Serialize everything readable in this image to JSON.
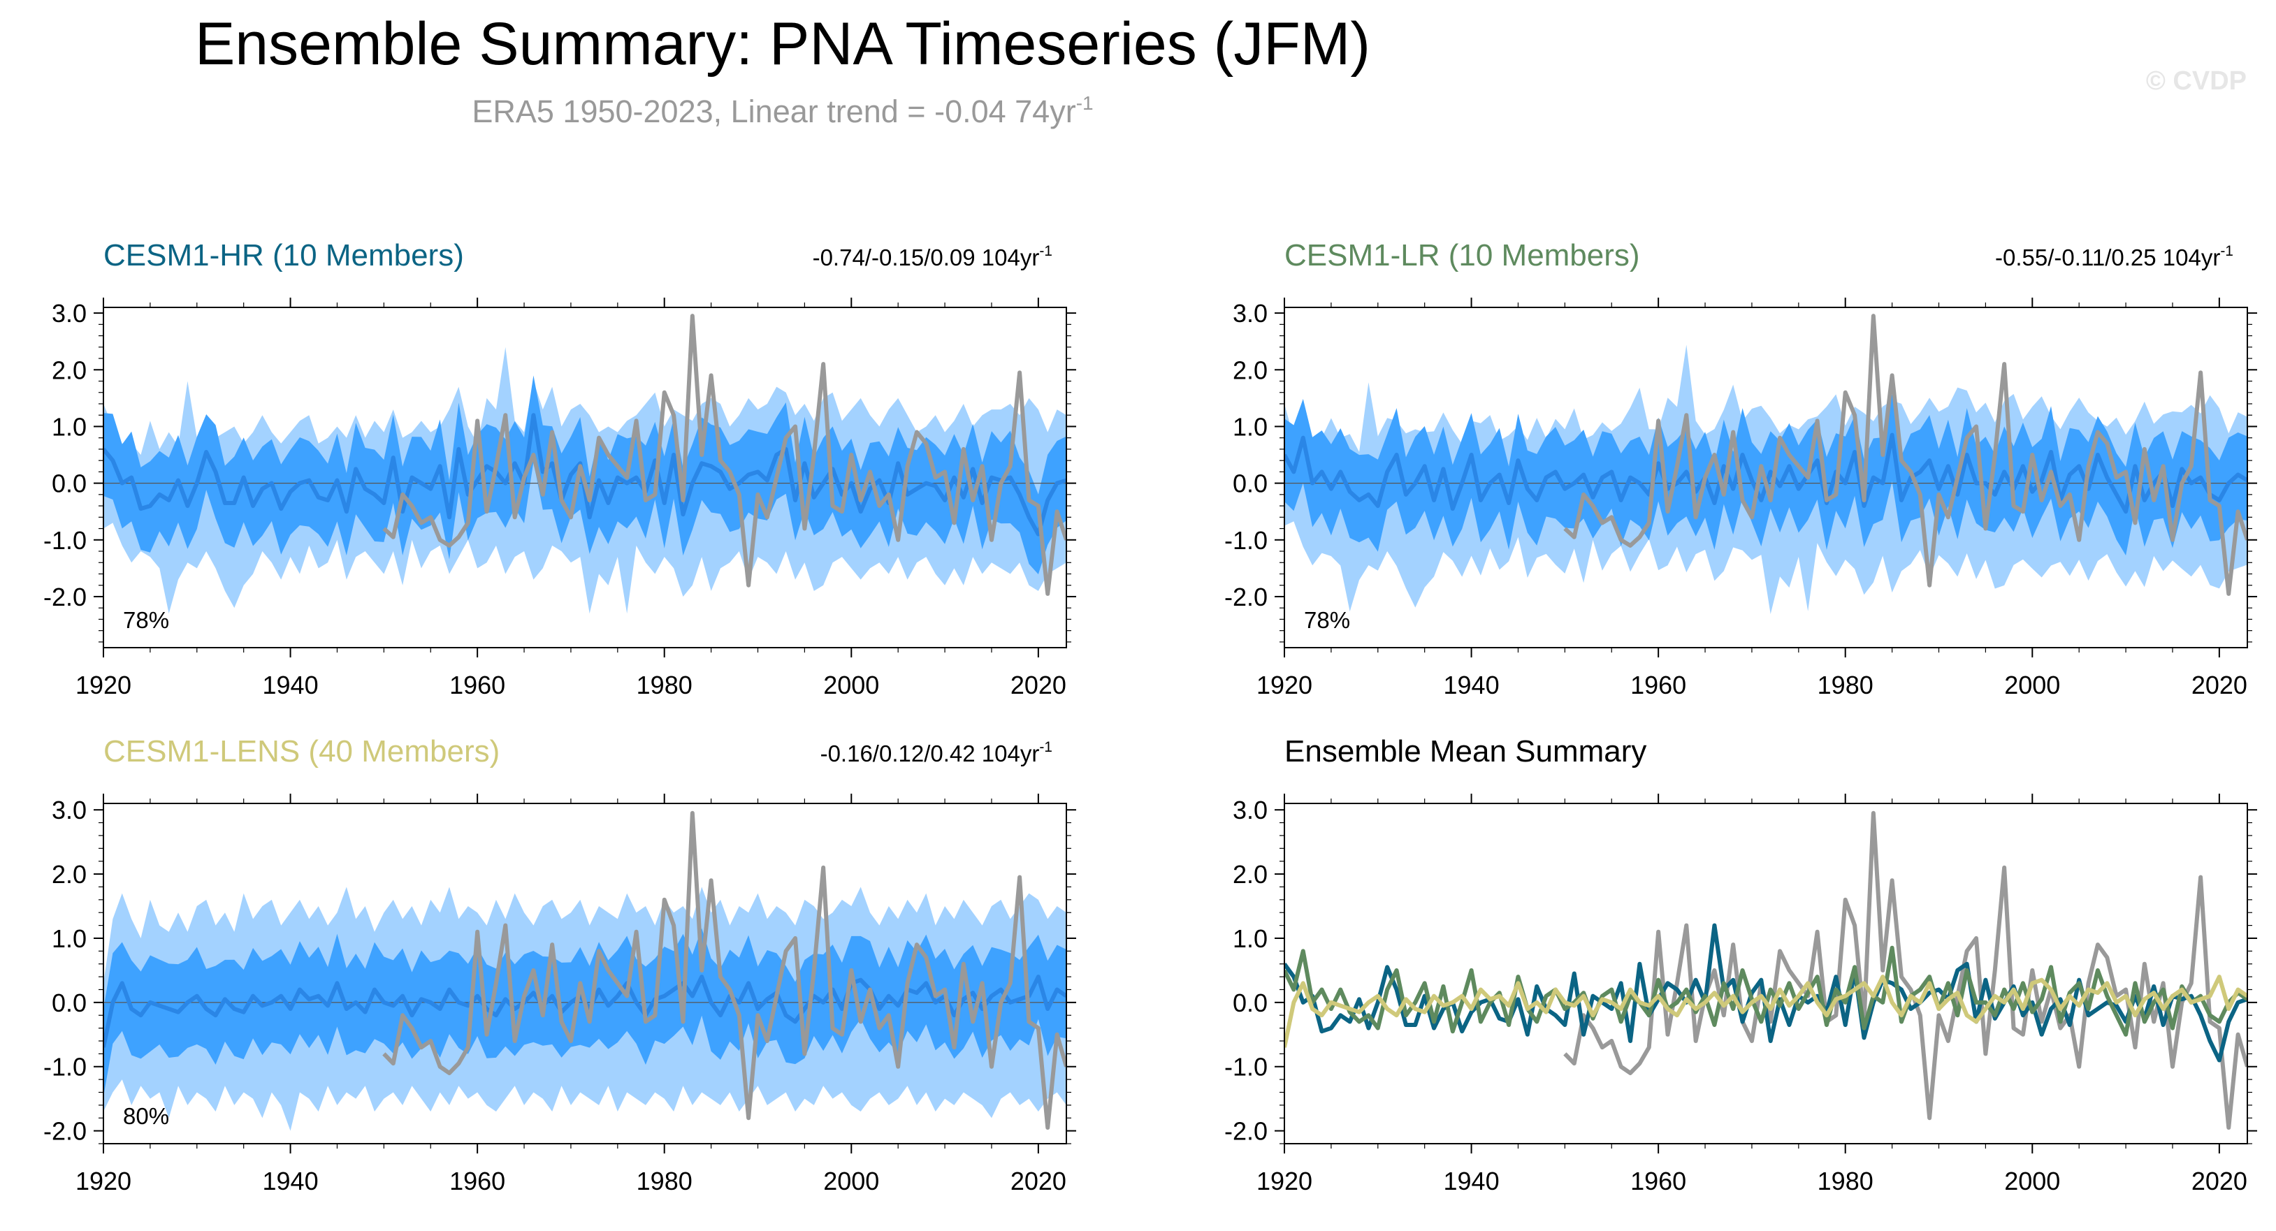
{
  "header": {
    "title": "Ensemble Summary: PNA Timeseries (JFM)",
    "subtitle": "ERA5 1950-2023, Linear trend = -0.04 74yr",
    "subtitle_sup": "-1",
    "watermark": "© CVDP"
  },
  "colors": {
    "obs": "#999999",
    "band_outer": "#a3d2ff",
    "band_inner": "#3ea2ff",
    "ens_mean": "#2a86e6",
    "hr": "#0b6484",
    "lr": "#5e8a5e",
    "lens": "#cfc97a"
  },
  "chart_data": [
    {
      "type": "line",
      "id": "hr",
      "title": "CESM1-HR (10 Members)",
      "title_color": "#0b6484",
      "trend_label": "-0.74/-0.15/0.09 104yr",
      "trend_sup": "-1",
      "pct_label": "78%",
      "xlabel": "",
      "ylabel": "",
      "xlim": [
        1920,
        2023
      ],
      "ylim": [
        -2.9,
        3.1
      ],
      "yticks": [
        3.0,
        2.0,
        1.0,
        0.0,
        -1.0,
        -2.0
      ],
      "ytick_labels": [
        "3.0",
        "2.0",
        "1.0",
        "0.0",
        "-1.0",
        "-2.0"
      ],
      "xticks": [
        1920,
        1940,
        1960,
        1980,
        2000,
        2020
      ],
      "xtick_labels": [
        "1920",
        "1940",
        "1960",
        "1980",
        "2000",
        "2020"
      ],
      "series": [
        {
          "name": "Ensemble spread (full range)",
          "style": "band_outer"
        },
        {
          "name": "Ensemble spread (inner range)",
          "style": "band_inner"
        },
        {
          "name": "CESM1-HR ensemble mean",
          "style": "ens_mean"
        },
        {
          "name": "ERA5",
          "style": "obs",
          "x_start": 1950
        }
      ]
    },
    {
      "type": "line",
      "id": "lr",
      "title": "CESM1-LR (10 Members)",
      "title_color": "#5e8a5e",
      "trend_label": "-0.55/-0.11/0.25 104yr",
      "trend_sup": "-1",
      "pct_label": "78%",
      "xlabel": "",
      "ylabel": "",
      "xlim": [
        1920,
        2023
      ],
      "ylim": [
        -2.9,
        3.1
      ],
      "yticks": [
        3.0,
        2.0,
        1.0,
        0.0,
        -1.0,
        -2.0
      ],
      "ytick_labels": [
        "3.0",
        "2.0",
        "1.0",
        "0.0",
        "-1.0",
        "-2.0"
      ],
      "xticks": [
        1920,
        1940,
        1960,
        1980,
        2000,
        2020
      ],
      "xtick_labels": [
        "1920",
        "1940",
        "1960",
        "1980",
        "2000",
        "2020"
      ],
      "series": [
        {
          "name": "Ensemble spread (full range)",
          "style": "band_outer"
        },
        {
          "name": "Ensemble spread (inner range)",
          "style": "band_inner"
        },
        {
          "name": "CESM1-LR ensemble mean",
          "style": "ens_mean"
        },
        {
          "name": "ERA5",
          "style": "obs",
          "x_start": 1950
        }
      ]
    },
    {
      "type": "line",
      "id": "lens",
      "title": "CESM1-LENS (40 Members)",
      "title_color": "#cfc97a",
      "trend_label": "-0.16/0.12/0.42 104yr",
      "trend_sup": "-1",
      "pct_label": "80%",
      "xlabel": "",
      "ylabel": "",
      "xlim": [
        1920,
        2023
      ],
      "ylim": [
        -2.2,
        3.1
      ],
      "yticks": [
        3.0,
        2.0,
        1.0,
        0.0,
        -1.0,
        -2.0
      ],
      "ytick_labels": [
        "3.0",
        "2.0",
        "1.0",
        "0.0",
        "-1.0",
        "-2.0"
      ],
      "xticks": [
        1920,
        1940,
        1960,
        1980,
        2000,
        2020
      ],
      "xtick_labels": [
        "1920",
        "1940",
        "1960",
        "1980",
        "2000",
        "2020"
      ],
      "series": [
        {
          "name": "Ensemble spread (full range)",
          "style": "band_outer"
        },
        {
          "name": "Ensemble spread (inner range)",
          "style": "band_inner"
        },
        {
          "name": "CESM1-LENS ensemble mean",
          "style": "ens_mean"
        },
        {
          "name": "ERA5",
          "style": "obs",
          "x_start": 1950
        }
      ]
    },
    {
      "type": "line",
      "id": "summary",
      "title": "Ensemble Mean Summary",
      "title_color": "#000000",
      "xlabel": "",
      "ylabel": "",
      "xlim": [
        1920,
        2023
      ],
      "ylim": [
        -2.2,
        3.1
      ],
      "yticks": [
        3.0,
        2.0,
        1.0,
        0.0,
        -1.0,
        -2.0
      ],
      "ytick_labels": [
        "3.0",
        "2.0",
        "1.0",
        "0.0",
        "-1.0",
        "-2.0"
      ],
      "xticks": [
        1920,
        1940,
        1960,
        1980,
        2000,
        2020
      ],
      "xtick_labels": [
        "1920",
        "1940",
        "1960",
        "1980",
        "2000",
        "2020"
      ],
      "series": [
        {
          "name": "ERA5",
          "style": "obs",
          "x_start": 1950
        },
        {
          "name": "CESM1-HR ensemble mean",
          "style": "hr"
        },
        {
          "name": "CESM1-LR ensemble mean",
          "style": "lr"
        },
        {
          "name": "CESM1-LENS ensemble mean",
          "style": "lens"
        }
      ]
    }
  ],
  "series_values": {
    "obs_start": 1950,
    "obs": [
      -0.8,
      -0.95,
      -0.2,
      -0.4,
      -0.7,
      -0.6,
      -1.0,
      -1.1,
      -0.95,
      -0.7,
      1.1,
      -0.5,
      0.3,
      1.2,
      -0.6,
      0.1,
      0.5,
      -0.2,
      0.9,
      -0.3,
      -0.6,
      0.3,
      -0.3,
      0.8,
      0.5,
      0.3,
      0.1,
      1.1,
      -0.3,
      -0.2,
      1.6,
      1.2,
      -0.3,
      2.95,
      0.5,
      1.9,
      0.4,
      0.2,
      -0.2,
      -1.8,
      -0.2,
      -0.6,
      0.1,
      0.8,
      1.0,
      -0.8,
      0.5,
      2.1,
      -0.4,
      -0.5,
      0.5,
      -0.3,
      0.2,
      -0.4,
      -0.2,
      -1.0,
      0.3,
      0.9,
      0.7,
      0.1,
      0.2,
      -0.7,
      0.6,
      -0.3,
      0.3,
      -1.0,
      0.0,
      0.3,
      1.95,
      -0.3,
      -0.4,
      -1.95,
      -0.5,
      -1.0
    ],
    "hr_mean": [
      0.6,
      0.4,
      0.0,
      0.1,
      -0.45,
      -0.4,
      -0.2,
      -0.3,
      0.05,
      -0.4,
      0.0,
      0.55,
      0.2,
      -0.35,
      -0.35,
      0.1,
      -0.4,
      -0.1,
      0.0,
      -0.45,
      -0.15,
      0.0,
      0.05,
      -0.25,
      -0.3,
      0.05,
      -0.5,
      0.25,
      -0.1,
      -0.2,
      -0.35,
      0.45,
      -0.5,
      0.1,
      0.0,
      -0.1,
      0.3,
      -0.6,
      0.6,
      -0.2,
      0.05,
      0.3,
      0.2,
      0.0,
      0.35,
      0.0,
      1.2,
      0.2,
      0.35,
      -0.3,
      0.15,
      0.35,
      -0.6,
      0.05,
      -0.35,
      0.1,
      0.0,
      0.1,
      -0.15,
      0.4,
      -0.35,
      0.5,
      -0.55,
      0.0,
      0.35,
      0.3,
      0.2,
      -0.1,
      0.0,
      0.15,
      0.2,
      0.05,
      0.5,
      0.6,
      -0.3,
      0.35,
      -0.25,
      0.0,
      0.25,
      -0.2,
      0.0,
      -0.5,
      -0.1,
      0.05,
      -0.35,
      0.35,
      -0.2,
      -0.1,
      0.0,
      -0.05,
      -0.3,
      0.1,
      -0.25,
      0.25,
      -0.35,
      0.1,
      0.05,
      0.1,
      -0.2,
      -0.6,
      -0.9,
      -0.3,
      0.0,
      0.05
    ],
    "lr_mean": [
      0.5,
      0.2,
      0.8,
      0.0,
      0.2,
      -0.1,
      0.2,
      -0.15,
      -0.3,
      -0.2,
      -0.4,
      0.2,
      0.5,
      -0.2,
      0.0,
      0.3,
      -0.3,
      0.25,
      -0.45,
      0.0,
      0.5,
      -0.3,
      0.0,
      0.15,
      -0.35,
      0.4,
      -0.1,
      -0.3,
      0.1,
      0.2,
      -0.1,
      0.0,
      0.15,
      -0.25,
      0.1,
      0.2,
      -0.3,
      0.1,
      0.0,
      -0.2,
      0.35,
      -0.1,
      0.0,
      0.2,
      -0.15,
      0.1,
      -0.35,
      0.3,
      -0.1,
      0.5,
      0.05,
      -0.3,
      0.2,
      -0.05,
      0.3,
      -0.1,
      0.15,
      0.4,
      -0.35,
      0.2,
      0.0,
      0.55,
      -0.4,
      0.1,
      0.0,
      0.85,
      -0.3,
      0.1,
      0.2,
      0.4,
      -0.1,
      0.3,
      -0.2,
      0.5,
      0.0,
      0.0,
      -0.2,
      0.2,
      -0.1,
      0.3,
      -0.15,
      0.05,
      0.55,
      -0.3,
      0.15,
      0.3,
      -0.1,
      0.5,
      0.1,
      -0.2,
      -0.5,
      0.3,
      -0.3,
      0.0,
      0.2,
      -0.4,
      0.25,
      0.0,
      0.1,
      -0.2,
      -0.3,
      0.0,
      0.15,
      0.05
    ],
    "lens_mean": [
      -0.7,
      0.0,
      0.3,
      -0.1,
      -0.2,
      0.0,
      -0.05,
      -0.1,
      -0.15,
      0.0,
      0.1,
      -0.1,
      -0.2,
      0.05,
      -0.1,
      -0.15,
      0.1,
      -0.05,
      0.0,
      0.1,
      -0.1,
      0.2,
      0.05,
      0.1,
      -0.05,
      0.3,
      -0.1,
      0.0,
      -0.15,
      0.2,
      0.0,
      -0.05,
      0.1,
      -0.2,
      0.05,
      0.0,
      -0.1,
      0.2,
      0.0,
      -0.05,
      0.1,
      -0.1,
      -0.2,
      0.05,
      -0.1,
      0.0,
      0.15,
      -0.05,
      0.1,
      -0.15,
      0.0,
      0.1,
      -0.1,
      0.2,
      -0.05,
      0.1,
      0.3,
      0.0,
      -0.2,
      0.05,
      0.1,
      0.2,
      0.3,
      0.1,
      0.4,
      0.0,
      -0.2,
      0.1,
      0.0,
      0.3,
      -0.1,
      0.05,
      0.15,
      -0.2,
      -0.3,
      -0.1,
      0.1,
      0.0,
      0.2,
      -0.1,
      0.3,
      0.35,
      0.2,
      -0.1,
      0.1,
      -0.05,
      0.2,
      0.15,
      0.3,
      0.0,
      0.1,
      -0.2,
      0.05,
      0.15,
      -0.1,
      0.1,
      0.2,
      0.0,
      0.05,
      0.1,
      0.4,
      -0.1,
      0.2,
      0.1
    ],
    "hr_outer_hi": [
      1.4,
      0.8,
      0.7,
      0.6,
      0.5,
      1.1,
      0.6,
      0.9,
      0.6,
      1.8,
      0.8,
      1.1,
      0.8,
      0.9,
      1.0,
      0.7,
      0.9,
      1.2,
      0.9,
      0.7,
      0.9,
      1.1,
      1.2,
      0.7,
      0.8,
      1.0,
      0.8,
      1.2,
      0.8,
      1.1,
      0.9,
      1.3,
      0.8,
      0.9,
      1.1,
      0.9,
      1.0,
      1.3,
      1.7,
      1.0,
      0.7,
      1.5,
      1.3,
      2.4,
      1.1,
      0.9,
      1.0,
      1.3,
      1.7,
      1.0,
      1.3,
      1.4,
      1.2,
      0.9,
      1.0,
      0.9,
      1.1,
      1.2,
      1.4,
      1.6,
      1.0,
      1.3,
      1.2,
      1.1,
      1.4,
      1.5,
      1.4,
      1.0,
      1.2,
      1.5,
      1.3,
      1.4,
      1.7,
      1.6,
      1.2,
      1.4,
      1.1,
      1.5,
      1.6,
      1.1,
      1.3,
      1.5,
      1.2,
      1.0,
      1.3,
      1.5,
      1.2,
      0.9,
      1.0,
      1.2,
      0.9,
      1.1,
      1.4,
      1.0,
      1.2,
      1.3,
      1.3,
      1.4,
      1.2,
      1.5,
      1.3,
      0.9,
      1.3,
      1.2
    ],
    "hr_outer_lo": [
      -0.8,
      -0.7,
      -1.1,
      -1.4,
      -1.2,
      -1.3,
      -1.5,
      -2.3,
      -1.7,
      -1.4,
      -1.5,
      -1.2,
      -1.5,
      -1.9,
      -2.2,
      -1.8,
      -1.6,
      -1.2,
      -1.4,
      -1.7,
      -1.3,
      -1.6,
      -1.1,
      -1.5,
      -1.4,
      -1.0,
      -1.7,
      -1.3,
      -1.2,
      -1.4,
      -1.6,
      -1.2,
      -1.8,
      -1.0,
      -1.5,
      -1.2,
      -1.1,
      -1.6,
      -1.3,
      -1.0,
      -1.5,
      -1.4,
      -1.1,
      -1.6,
      -1.3,
      -1.2,
      -1.7,
      -1.5,
      -1.1,
      -1.2,
      -1.4,
      -1.3,
      -2.3,
      -1.6,
      -1.8,
      -1.3,
      -2.3,
      -1.1,
      -1.4,
      -1.6,
      -1.3,
      -1.5,
      -2.0,
      -1.8,
      -1.3,
      -1.9,
      -1.5,
      -1.4,
      -1.2,
      -1.7,
      -1.3,
      -1.4,
      -1.6,
      -1.2,
      -1.7,
      -1.4,
      -1.9,
      -1.8,
      -1.4,
      -1.3,
      -1.5,
      -1.7,
      -1.5,
      -1.4,
      -1.6,
      -1.3,
      -1.7,
      -1.4,
      -1.3,
      -1.6,
      -1.8,
      -1.5,
      -1.8,
      -1.3,
      -1.6,
      -1.4,
      -1.5,
      -1.6,
      -1.4,
      -1.8,
      -1.9,
      -1.6,
      -1.5,
      -1.4
    ],
    "lens_outer_hi": [
      0.3,
      1.3,
      1.7,
      1.3,
      1.0,
      1.6,
      1.2,
      1.1,
      1.4,
      1.1,
      1.5,
      1.6,
      1.2,
      1.4,
      1.1,
      1.7,
      1.3,
      1.5,
      1.6,
      1.2,
      1.4,
      1.6,
      1.3,
      1.5,
      1.2,
      1.4,
      1.8,
      1.3,
      1.5,
      1.1,
      1.4,
      1.6,
      1.3,
      1.5,
      1.2,
      1.6,
      1.4,
      1.8,
      1.3,
      1.5,
      1.4,
      1.2,
      1.6,
      1.3,
      1.7,
      1.4,
      1.2,
      1.5,
      1.6,
      1.3,
      1.4,
      1.6,
      1.2,
      1.5,
      1.4,
      1.3,
      1.7,
      1.4,
      1.5,
      1.2,
      1.6,
      1.4,
      1.5,
      1.3,
      1.8,
      1.4,
      1.6,
      1.2,
      1.5,
      1.4,
      1.7,
      1.3,
      1.5,
      1.4,
      1.2,
      1.6,
      1.5,
      1.3,
      1.4,
      1.6,
      1.5,
      1.8,
      1.4,
      1.2,
      1.5,
      1.3,
      1.6,
      1.4,
      1.7,
      1.2,
      1.5,
      1.3,
      1.6,
      1.4,
      1.2,
      1.5,
      1.6,
      1.3,
      1.5,
      1.7,
      1.6,
      1.3,
      1.5,
      1.4
    ],
    "lens_outer_lo": [
      -1.7,
      -1.4,
      -1.2,
      -1.6,
      -1.3,
      -1.5,
      -1.4,
      -1.8,
      -1.3,
      -1.6,
      -1.4,
      -1.5,
      -1.7,
      -1.3,
      -1.6,
      -1.4,
      -1.5,
      -1.8,
      -1.4,
      -1.6,
      -2.0,
      -1.4,
      -1.5,
      -1.7,
      -1.3,
      -1.6,
      -1.4,
      -1.5,
      -1.3,
      -1.7,
      -1.5,
      -1.4,
      -1.6,
      -1.3,
      -1.5,
      -1.7,
      -1.4,
      -1.6,
      -1.3,
      -1.5,
      -1.4,
      -1.6,
      -1.7,
      -1.5,
      -1.3,
      -1.6,
      -1.4,
      -1.5,
      -1.7,
      -1.3,
      -1.6,
      -1.4,
      -1.5,
      -1.6,
      -1.3,
      -1.7,
      -1.4,
      -1.5,
      -1.6,
      -1.4,
      -1.5,
      -1.7,
      -1.3,
      -1.6,
      -1.4,
      -1.5,
      -1.6,
      -1.4,
      -1.7,
      -1.5,
      -1.3,
      -1.6,
      -1.5,
      -1.4,
      -1.7,
      -1.5,
      -1.6,
      -1.3,
      -1.5,
      -1.4,
      -1.6,
      -1.7,
      -1.5,
      -1.4,
      -1.6,
      -1.5,
      -1.3,
      -1.6,
      -1.4,
      -1.7,
      -1.5,
      -1.6,
      -1.4,
      -1.5,
      -1.6,
      -1.8,
      -1.5,
      -1.4,
      -1.6,
      -1.5,
      -1.7,
      -1.5,
      -1.4,
      -1.6
    ]
  }
}
